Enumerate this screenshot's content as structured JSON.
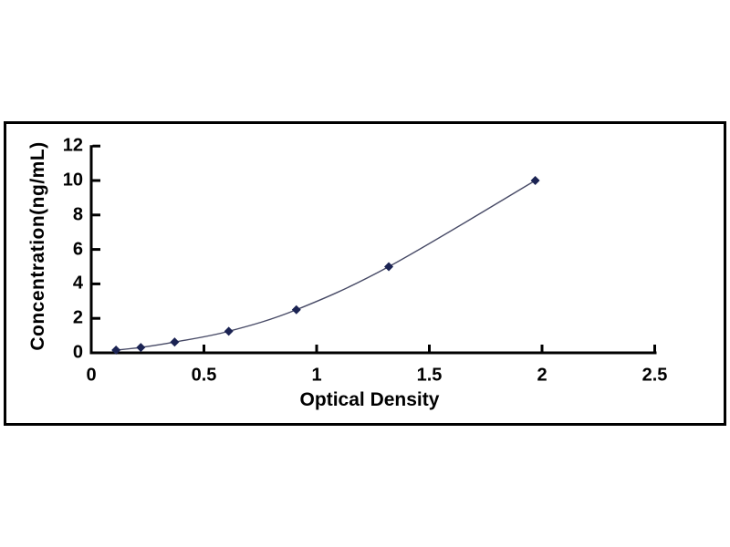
{
  "page": {
    "background_color": "#ffffff"
  },
  "chart": {
    "frame_border_color": "#000000",
    "axis_color": "#000000",
    "marker_color": "#1b2353",
    "line_color": "#474a66",
    "plot_background": "#ffffff"
  },
  "chart_data": {
    "type": "scatter",
    "title": "",
    "xlabel": "Optical Density",
    "ylabel": "Concentration(ng/mL)",
    "x": [
      0.11,
      0.22,
      0.37,
      0.61,
      0.91,
      1.32,
      1.97
    ],
    "y": [
      0.156,
      0.312,
      0.625,
      1.25,
      2.5,
      5,
      10
    ],
    "xlim": [
      0,
      2.5
    ],
    "ylim": [
      0,
      12
    ],
    "x_ticks": [
      0,
      0.5,
      1,
      1.5,
      2,
      2.5
    ],
    "x_tick_labels": [
      "0",
      "0.5",
      "1",
      "1.5",
      "2",
      "2.5"
    ],
    "y_ticks": [
      0,
      2,
      4,
      6,
      8,
      10,
      12
    ],
    "y_tick_labels": [
      "0",
      "2",
      "4",
      "6",
      "8",
      "10",
      "12"
    ],
    "marker": "diamond",
    "line_smooth": true,
    "grid": false,
    "legend_position": "none"
  }
}
